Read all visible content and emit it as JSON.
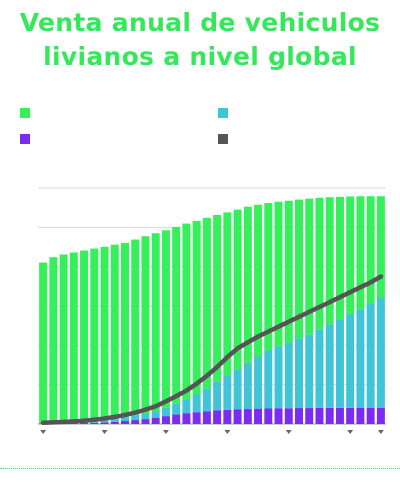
{
  "header": {
    "title_line1": "Venta anual de vehiculos",
    "title_line2": "livianos a nivel global"
  },
  "colors": {
    "title": "#35e85a",
    "green": "#35ef5b",
    "cyan": "#3fc4d8",
    "purple": "#7a2cf0",
    "line": "#555555",
    "grid": "#d9d9d9",
    "tick": "#666666"
  },
  "legend": {
    "items": [
      {
        "label": "",
        "color": "#35ef5b"
      },
      {
        "label": "",
        "color": "#3fc4d8"
      },
      {
        "label": "",
        "color": "#7a2cf0"
      },
      {
        "label": "",
        "color": "#555555"
      }
    ]
  },
  "chart_data": {
    "type": "bar",
    "stacked": true,
    "grid": true,
    "ylim": [
      0,
      120
    ],
    "categories_count": 34,
    "series": [
      {
        "values": [
          0.2,
          0.2,
          0.3,
          0.4,
          0.5,
          0.6,
          0.8,
          1.1,
          1.5,
          2.0,
          2.5,
          3.2,
          4.0,
          4.8,
          5.5,
          6.0,
          6.5,
          7.0,
          7.2,
          7.4,
          7.6,
          7.8,
          7.9,
          8.0,
          8.0,
          8.1,
          8.1,
          8.2,
          8.2,
          8.2,
          8.2,
          8.3,
          8.3,
          8.3
        ]
      },
      {
        "values": [
          0.4,
          0.4,
          0.5,
          0.6,
          0.8,
          1.0,
          1.2,
          1.5,
          1.9,
          2.3,
          2.8,
          3.4,
          4.2,
          5.5,
          7.0,
          9.0,
          11.5,
          14.5,
          17.5,
          20.5,
          23.5,
          26.5,
          29.5,
          31.5,
          33.5,
          35.5,
          37.5,
          40.0,
          42.5,
          45.0,
          47.5,
          50.0,
          53.0,
          56.0
        ]
      },
      {
        "values": [
          81.5,
          84.2,
          85.4,
          86.2,
          86.9,
          87.6,
          88.1,
          88.6,
          88.7,
          89.5,
          90.2,
          90.4,
          90.3,
          89.9,
          89.4,
          88.3,
          86.8,
          84.8,
          82.9,
          81.1,
          79.4,
          77.2,
          75.0,
          73.5,
          72.0,
          70.5,
          69.0,
          66.8,
          64.6,
          62.3,
          60.0,
          57.5,
          54.5,
          51.5
        ]
      },
      {
        "type": "line",
        "values": [
          0.6,
          0.8,
          1.0,
          1.3,
          1.7,
          2.2,
          2.8,
          3.6,
          4.6,
          5.8,
          7.3,
          9.0,
          11.5,
          14.2,
          17.0,
          20.5,
          24.5,
          29.0,
          34.0,
          38.5,
          41.5,
          44.5,
          47.0,
          49.5,
          52.0,
          54.5,
          57.0,
          59.5,
          62.0,
          64.5,
          67.0,
          69.5,
          72.0,
          75.0
        ]
      }
    ]
  }
}
